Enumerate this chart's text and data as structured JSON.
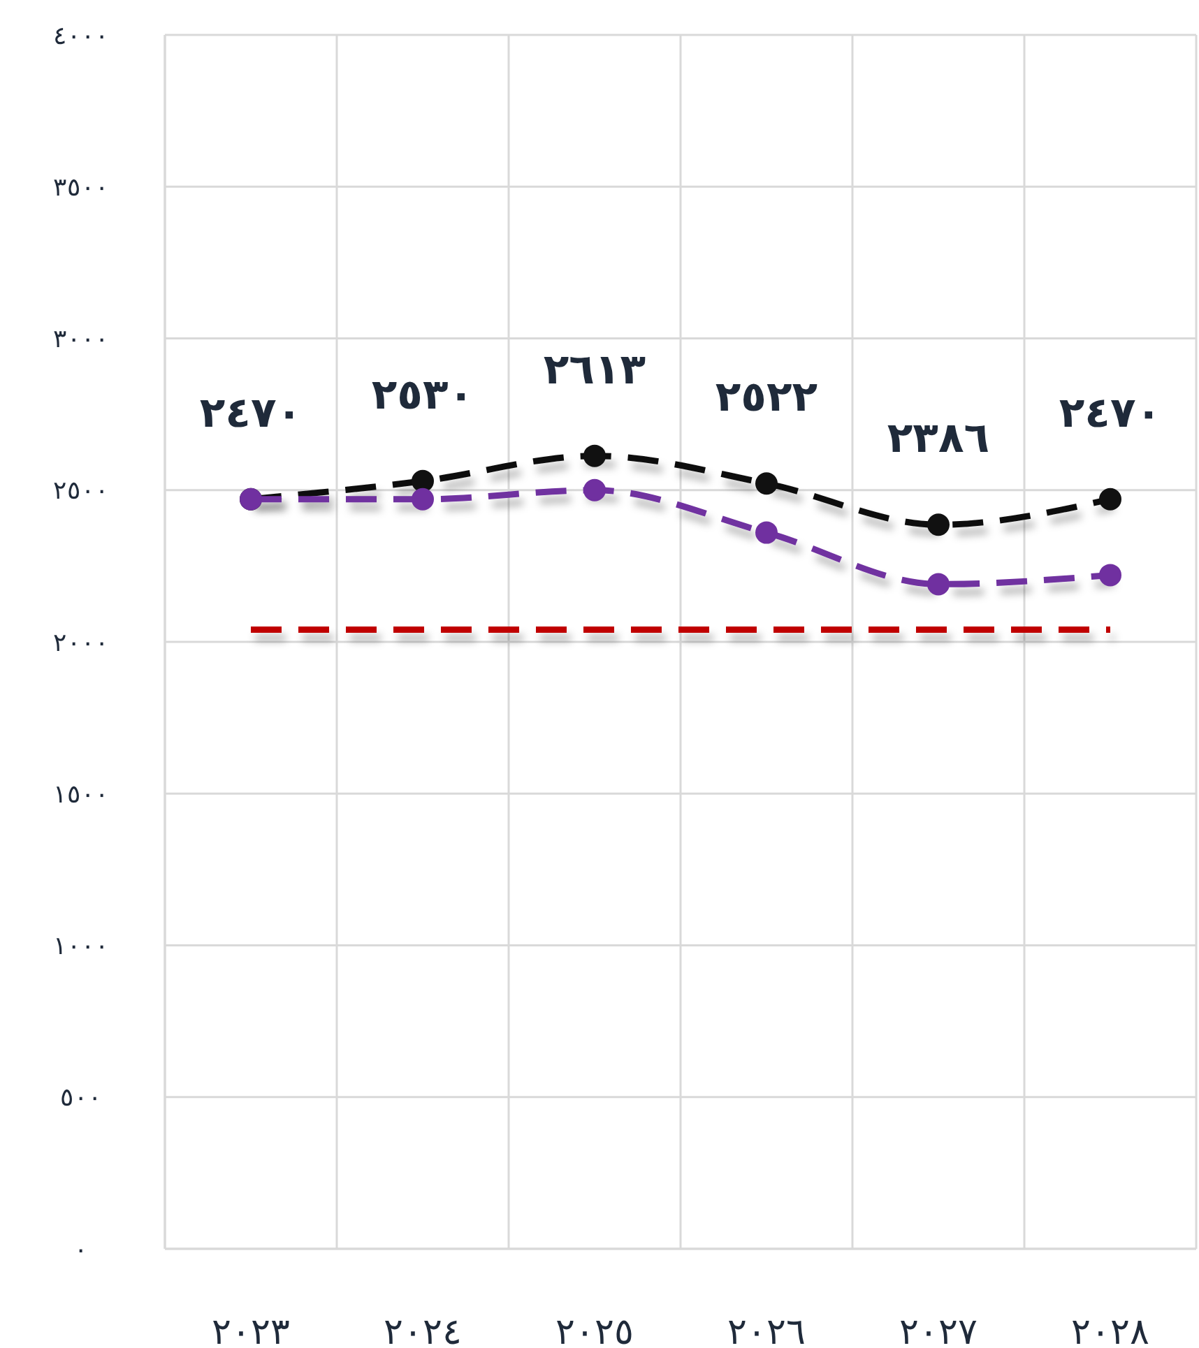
{
  "chart_data": {
    "type": "line",
    "categories": [
      "٢٠٢٣",
      "٢٠٢٤",
      "٢٠٢٥",
      "٢٠٢٦",
      "٢٠٢٧",
      "٢٠٢٨"
    ],
    "series": [
      {
        "color": "#111111",
        "values": [
          2470,
          2530,
          2613,
          2522,
          2386,
          2470
        ],
        "value_labels": [
          "٢٤٧٠",
          "٢٥٣٠",
          "٢٦١٣",
          "٢٥٢٢",
          "٢٣٨٦",
          "٢٤٧٠"
        ],
        "marker": "circle"
      },
      {
        "color": "#7030a0",
        "values": [
          2470,
          2470,
          2500,
          2360,
          2190,
          2220
        ],
        "marker": "circle"
      },
      {
        "color": "#c00000",
        "values": [
          2040,
          2040,
          2040,
          2040,
          2040,
          2040
        ],
        "marker": "none"
      }
    ],
    "ylim": [
      0,
      4000
    ],
    "yticks": [
      {
        "value": 0,
        "label": "٠"
      },
      {
        "value": 500,
        "label": "٥٠٠"
      },
      {
        "value": 1000,
        "label": "١٠٠٠"
      },
      {
        "value": 1500,
        "label": "١٥٠٠"
      },
      {
        "value": 2000,
        "label": "٢٠٠٠"
      },
      {
        "value": 2500,
        "label": "٢٥٠٠"
      },
      {
        "value": 3000,
        "label": "٣٠٠٠"
      },
      {
        "value": 3500,
        "label": "٣٥٠٠"
      },
      {
        "value": 4000,
        "label": "٤٠٠٠"
      }
    ],
    "grid": true,
    "line_style": "dashed"
  }
}
